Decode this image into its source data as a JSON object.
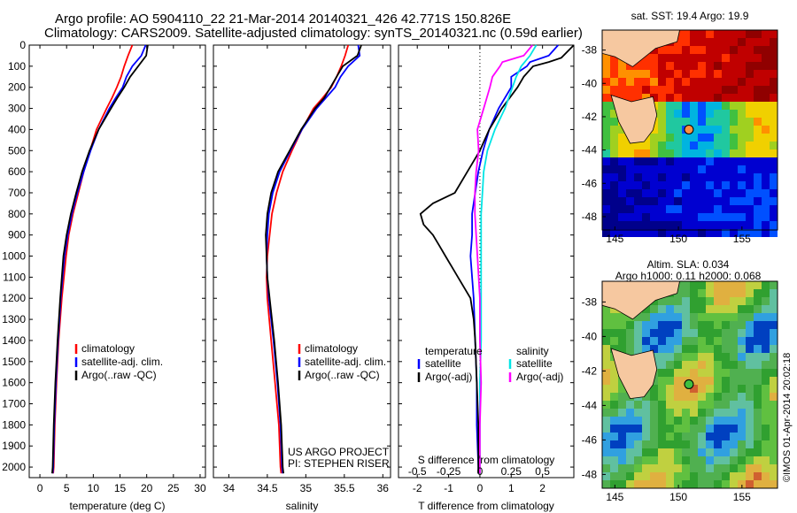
{
  "header": {
    "line1": "Argo profile: AO 5904110_22 21-Mar-2014 20140321_426 42.771S 150.826E",
    "line2": "Climatology: CARS2009. Satellite-adjusted climatology: synTS_20140321.nc (0.59d earlier)"
  },
  "depth_ticks": [
    "0",
    "100",
    "200",
    "300",
    "400",
    "500",
    "600",
    "700",
    "800",
    "900",
    "1000",
    "1100",
    "1200",
    "1300",
    "1400",
    "1500",
    "1600",
    "1700",
    "1800",
    "1900",
    "2000"
  ],
  "colors": {
    "climatology": "#ff0000",
    "satellite": "#0000ff",
    "argo": "#000000",
    "sat_salinity": "#00e5e5",
    "argo_salinity": "#ff00ff"
  },
  "chart_data": [
    {
      "type": "line",
      "xlabel": "temperature (deg C)",
      "xticks": [
        "0",
        "5",
        "10",
        "15",
        "20",
        "25",
        "30"
      ],
      "xlim": [
        -2,
        31
      ],
      "ylim": [
        0,
        2050
      ],
      "legend": [
        "climatology",
        "satellite-adj. clim.",
        "Argo(..raw -QC)"
      ],
      "series": [
        {
          "name": "climatology",
          "depth": [
            0,
            50,
            100,
            150,
            200,
            250,
            300,
            400,
            500,
            600,
            700,
            800,
            900,
            1000,
            1200,
            1400,
            1600,
            1800,
            2000,
            2030
          ],
          "values": [
            17.3,
            16.5,
            15.8,
            15.2,
            14.4,
            13.5,
            12.5,
            10.6,
            9.4,
            8.2,
            7.2,
            6.2,
            5.4,
            4.9,
            4.1,
            3.5,
            3.1,
            2.8,
            2.6,
            2.5
          ]
        },
        {
          "name": "satellite-adj. clim.",
          "depth": [
            0,
            50,
            100,
            150,
            200,
            250,
            300,
            400,
            500,
            600,
            700,
            800,
            900,
            1000,
            1200,
            1400,
            1600,
            1800,
            2000,
            2030
          ],
          "values": [
            19.8,
            19.0,
            17.3,
            16.2,
            15.5,
            14.2,
            13.0,
            11.0,
            9.5,
            8.2,
            7.0,
            6.0,
            5.2,
            4.6,
            3.9,
            3.4,
            3.0,
            2.7,
            2.5,
            2.4
          ]
        },
        {
          "name": "Argo(..raw -QC)",
          "depth": [
            0,
            50,
            100,
            150,
            200,
            250,
            300,
            400,
            500,
            600,
            700,
            800,
            900,
            1000,
            1200,
            1400,
            1600,
            1800,
            2000,
            2030
          ],
          "values": [
            20.2,
            19.9,
            18.4,
            16.9,
            15.8,
            14.5,
            13.3,
            11.0,
            9.3,
            7.9,
            6.8,
            5.8,
            5.0,
            4.4,
            3.8,
            3.3,
            2.9,
            2.6,
            2.4,
            2.3
          ]
        }
      ]
    },
    {
      "type": "line",
      "xlabel": "salinity",
      "xticks": [
        "34",
        "34.5",
        "35",
        "35.5",
        "36"
      ],
      "xlim": [
        33.8,
        36.1
      ],
      "ylim": [
        0,
        2050
      ],
      "legend": [
        "climatology",
        "satellite-adj. clim.",
        "Argo(..raw -QC)"
      ],
      "series": [
        {
          "name": "climatology",
          "depth": [
            0,
            50,
            100,
            150,
            200,
            250,
            300,
            400,
            500,
            600,
            700,
            800,
            900,
            1000,
            1100,
            1200,
            1400,
            1600,
            1800,
            2000,
            2030
          ],
          "values": [
            35.55,
            35.51,
            35.46,
            35.4,
            35.33,
            35.22,
            35.1,
            34.95,
            34.82,
            34.7,
            34.62,
            34.56,
            34.53,
            34.5,
            34.49,
            34.5,
            34.55,
            34.6,
            34.65,
            34.67,
            34.68
          ]
        },
        {
          "name": "satellite-adj. clim.",
          "depth": [
            0,
            50,
            100,
            150,
            200,
            250,
            300,
            400,
            500,
            600,
            700,
            800,
            900,
            1000,
            1100,
            1200,
            1400,
            1600,
            1800,
            2000,
            2030
          ],
          "values": [
            35.68,
            35.7,
            35.55,
            35.45,
            35.38,
            35.26,
            35.14,
            34.95,
            34.8,
            34.66,
            34.57,
            34.52,
            34.5,
            34.49,
            34.5,
            34.52,
            34.58,
            34.63,
            34.67,
            34.69,
            34.7
          ]
        },
        {
          "name": "Argo(..raw -QC)",
          "depth": [
            0,
            50,
            100,
            150,
            200,
            250,
            300,
            400,
            500,
            600,
            700,
            800,
            900,
            1000,
            1100,
            1200,
            1400,
            1600,
            1800,
            2000,
            2030
          ],
          "values": [
            35.72,
            35.67,
            35.48,
            35.4,
            35.32,
            35.24,
            35.12,
            34.94,
            34.79,
            34.64,
            34.55,
            34.5,
            34.48,
            34.49,
            34.5,
            34.53,
            34.59,
            34.64,
            34.68,
            34.7,
            34.71
          ]
        }
      ],
      "annotation": [
        "US ARGO PROJECT",
        "PI: STEPHEN RISER"
      ]
    },
    {
      "type": "line",
      "xlabel": "T difference from climatology",
      "xlabel_top": "S difference from climatology",
      "xticks": [
        "-2",
        "-1",
        "0",
        "1",
        "2"
      ],
      "xticks_top": [
        "-0.5",
        "-0.25",
        "0",
        "0.25",
        "0.5"
      ],
      "xlim": [
        -2.6,
        3.0
      ],
      "ylim": [
        0,
        2050
      ],
      "legend_groups": [
        {
          "title": "temperature",
          "entries": [
            "satellite",
            "Argo(-adj)"
          ]
        },
        {
          "title": "salinity",
          "entries": [
            "satellite",
            "Argo(-adj)"
          ]
        }
      ],
      "series": [
        {
          "name": "satellite",
          "group": "temperature",
          "depth": [
            0,
            50,
            80,
            100,
            150,
            200,
            300,
            400,
            500,
            600,
            700,
            800,
            900,
            1000,
            1200,
            1400,
            1600,
            1800,
            2000,
            2030
          ],
          "values": [
            2.5,
            2.2,
            1.6,
            1.5,
            1.0,
            1.0,
            0.6,
            0.3,
            0.1,
            -0.05,
            -0.15,
            -0.25,
            -0.25,
            -0.3,
            -0.2,
            -0.15,
            -0.1,
            -0.1,
            -0.05,
            -0.05
          ]
        },
        {
          "name": "Argo(-adj)",
          "group": "temperature",
          "depth": [
            0,
            60,
            80,
            100,
            150,
            200,
            300,
            400,
            500,
            600,
            700,
            750,
            800,
            850,
            900,
            950,
            1000,
            1100,
            1200,
            1300,
            1400,
            1600,
            1800,
            2000,
            2030
          ],
          "values": [
            3.0,
            2.6,
            2.2,
            1.7,
            1.4,
            1.2,
            0.7,
            0.3,
            0.0,
            -0.4,
            -0.8,
            -1.5,
            -1.9,
            -1.8,
            -1.5,
            -1.3,
            -1.1,
            -0.7,
            -0.3,
            -0.2,
            -0.15,
            -0.1,
            -0.05,
            -0.05,
            -0.05
          ]
        },
        {
          "name": "satellite",
          "group": "salinity",
          "depth": [
            0,
            50,
            100,
            150,
            200,
            300,
            400,
            500,
            600,
            700,
            800,
            1000,
            1200,
            1400,
            1600,
            1800,
            2000,
            2030
          ],
          "values": [
            0.45,
            0.4,
            0.33,
            0.29,
            0.26,
            0.2,
            0.12,
            0.06,
            0.03,
            0.02,
            0.01,
            0.01,
            0.01,
            0.01,
            0.0,
            0.0,
            0.0,
            0.0
          ]
        },
        {
          "name": "Argo(-adj)",
          "group": "salinity",
          "depth": [
            0,
            50,
            80,
            100,
            150,
            200,
            300,
            400,
            500,
            600,
            700,
            800,
            1000,
            1200,
            1400,
            1600,
            1800,
            2000,
            2030
          ],
          "values": [
            0.42,
            0.35,
            0.18,
            0.16,
            0.1,
            0.08,
            0.03,
            -0.02,
            -0.01,
            -0.03,
            -0.04,
            -0.04,
            -0.02,
            0.0,
            0.0,
            0.01,
            0.0,
            0.0,
            0.0
          ]
        }
      ]
    }
  ],
  "maps": [
    {
      "title": "sat. SST: 19.4 Argo: 19.9",
      "xticks": [
        "145",
        "150",
        "155"
      ],
      "yticks": [
        "-38",
        "-40",
        "-42",
        "-44",
        "-46",
        "-48"
      ]
    },
    {
      "title_line1": "Altim. SLA: 0.034",
      "title_line2": "Argo h1000: 0.11 h2000: 0.068",
      "xticks": [
        "145",
        "150",
        "155"
      ],
      "yticks": [
        "-38",
        "-40",
        "-42",
        "-44",
        "-46",
        "-48"
      ]
    }
  ],
  "side_label": "©IMOS 01-Apr-2014 20:02:18"
}
